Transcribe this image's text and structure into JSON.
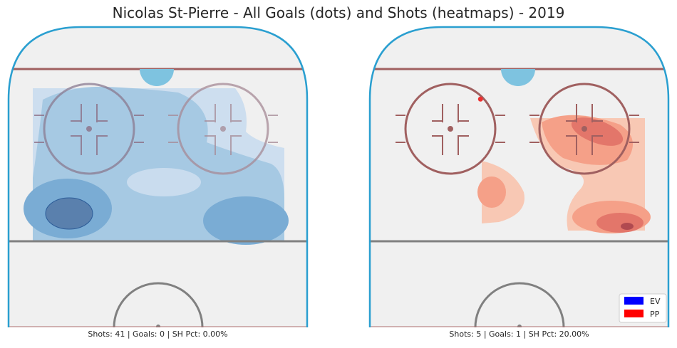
{
  "chart_data": {
    "type": "heatmap",
    "title": "Nicolas St-Pierre - All Goals (dots) and Shots (heatmaps) - 2019",
    "legend": {
      "placement": "bottom-right",
      "entries": [
        {
          "label": "EV",
          "color": "#0000ff"
        },
        {
          "label": "PP",
          "color": "#ff0000"
        }
      ]
    },
    "panels": [
      {
        "strength": "EV",
        "cmap": "Blues",
        "caption": "Shots: 41 | Goals: 0 | SH Pct: 0.00%",
        "shots": 41,
        "goals": 0,
        "sh_pct": "0.00%",
        "goal_points": []
      },
      {
        "strength": "PP",
        "cmap": "Reds",
        "caption": "Shots: 5 | Goals: 1 | SH Pct: 20.00%",
        "shots": 5,
        "goals": 1,
        "sh_pct": "20.00%",
        "goal_points": [
          {
            "x": -11,
            "y": 76
          }
        ]
      }
    ]
  }
}
